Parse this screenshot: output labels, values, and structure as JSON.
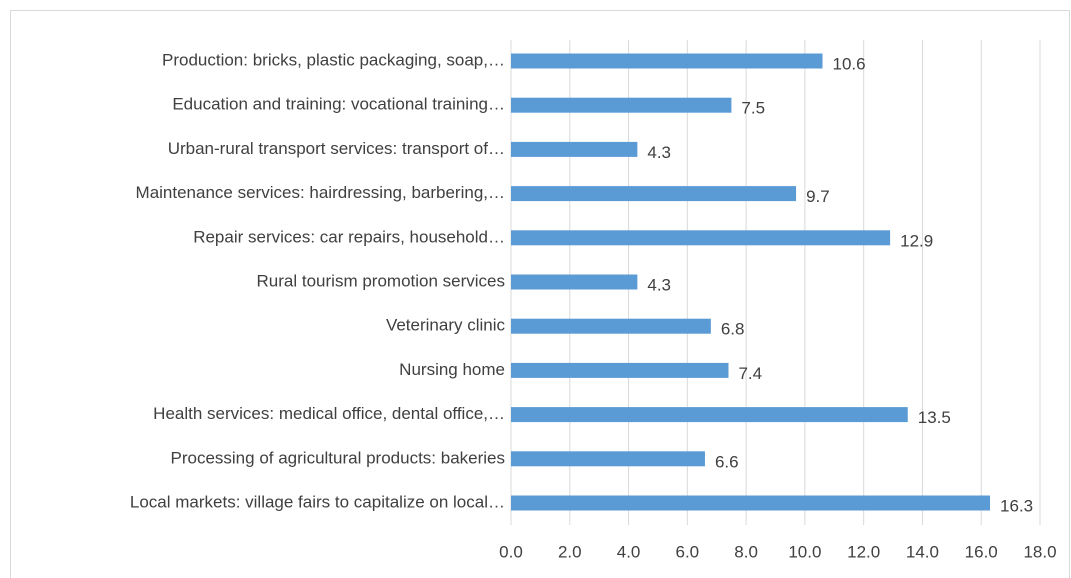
{
  "chart_data": {
    "type": "bar",
    "orientation": "horizontal",
    "categories": [
      "Production: bricks, plastic packaging, soap,…",
      "Education and training: vocational training…",
      "Urban-rural transport services: transport of…",
      "Maintenance services: hairdressing, barbering,…",
      "Repair services: car repairs, household…",
      "Rural tourism promotion services",
      "Veterinary clinic",
      "Nursing home",
      "Health services: medical office, dental office,…",
      "Processing of agricultural products: bakeries",
      "Local markets: village fairs to capitalize on local…"
    ],
    "values": [
      10.6,
      7.5,
      4.3,
      9.7,
      12.9,
      4.3,
      6.8,
      7.4,
      13.5,
      6.6,
      16.3
    ],
    "color": "#5b9bd5",
    "xlim": [
      0,
      18
    ],
    "xticks": [
      {
        "value": 0,
        "label": "0.0"
      },
      {
        "value": 2,
        "label": "2.0"
      },
      {
        "value": 4,
        "label": "4.0"
      },
      {
        "value": 6,
        "label": "6.0"
      },
      {
        "value": 8,
        "label": "8.0"
      },
      {
        "value": 10,
        "label": "10.0"
      },
      {
        "value": 12,
        "label": "12.0"
      },
      {
        "value": 14,
        "label": "14.0"
      },
      {
        "value": 16,
        "label": "16.0"
      },
      {
        "value": 18,
        "label": "18.0"
      }
    ],
    "grid": true
  }
}
